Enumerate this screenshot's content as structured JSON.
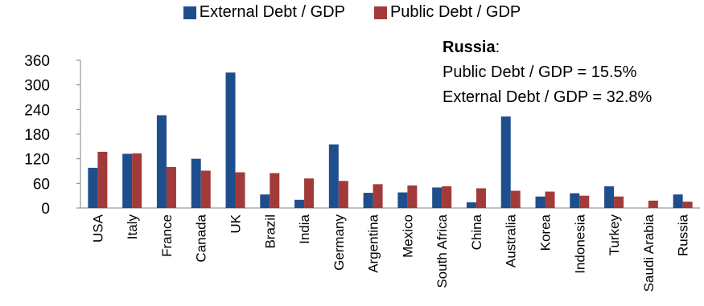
{
  "chart_data": {
    "type": "bar",
    "categories": [
      "USA",
      "Italy",
      "France",
      "Canada",
      "UK",
      "Brazil",
      "India",
      "Germany",
      "Argentina",
      "Mexico",
      "South Africa",
      "China",
      "Australia",
      "Korea",
      "Indonesia",
      "Turkey",
      "Saudi Arabia",
      "Russia"
    ],
    "series": [
      {
        "name": "External Debt / GDP",
        "color": "#1f4e8c",
        "values": [
          98,
          132,
          226,
          120,
          330,
          33,
          20,
          155,
          37,
          38,
          50,
          14,
          223,
          28,
          36,
          53,
          0,
          33
        ]
      },
      {
        "name": "Public Debt / GDP",
        "color": "#a33a3a",
        "values": [
          137,
          133,
          100,
          91,
          87,
          85,
          72,
          66,
          58,
          55,
          53,
          48,
          42,
          40,
          30,
          28,
          18,
          15.5
        ]
      }
    ],
    "ylim": [
      0,
      360
    ],
    "yticks": [
      0,
      60,
      120,
      180,
      240,
      300,
      360
    ],
    "grid": false,
    "legend_position": "top-center",
    "annotation": {
      "country": "Russia",
      "suffix": ":",
      "line1": "Public Debt / GDP = 15.5%",
      "line2": "External Debt / GDP = 32.8%"
    }
  }
}
